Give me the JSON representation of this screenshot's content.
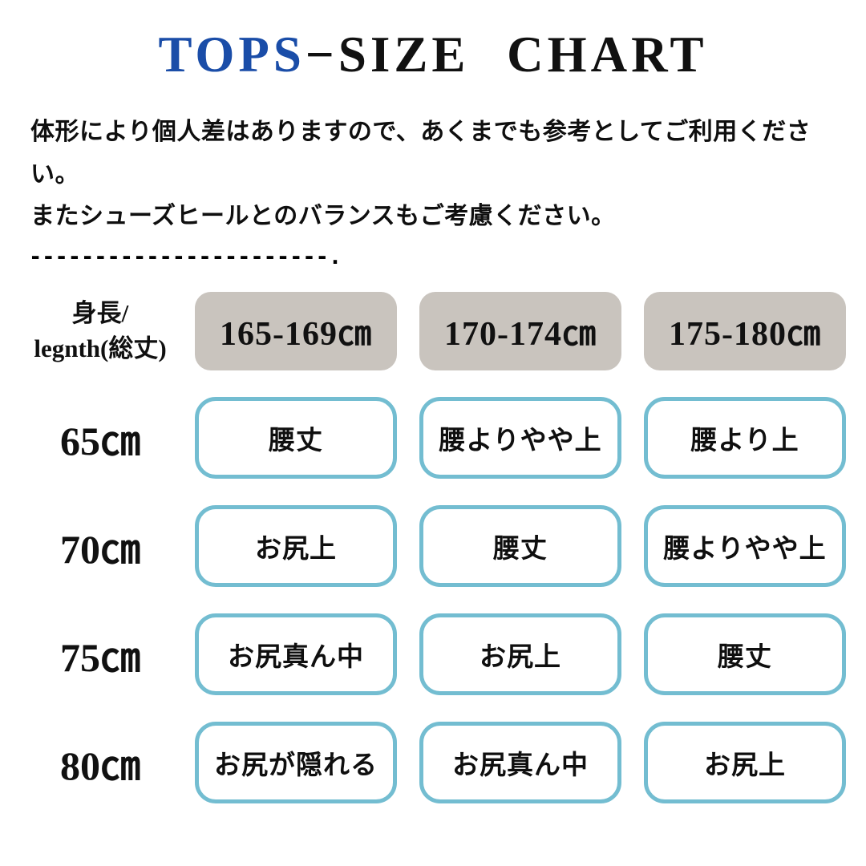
{
  "title": {
    "highlight": "TOPS",
    "rest": "−SIZE CHART"
  },
  "intro": "体形により個人差はありますので、あくまでも参考としてご利用ください。\nまたシューズヒールとのバランスもご考慮ください。",
  "divider": "-----------------------.",
  "colors": {
    "accent_blue": "#1a4da8",
    "header_box_bg": "#c9c4be",
    "cell_border_blue": "#73bdd1",
    "text": "#111111",
    "background": "#ffffff"
  },
  "table": {
    "corner_label": "身長/\nlegnth(総丈)",
    "columns": [
      "165-169㎝",
      "170-174㎝",
      "175-180㎝"
    ],
    "rows": [
      {
        "label": "65㎝",
        "cells": [
          "腰丈",
          "腰よりやや上",
          "腰より上"
        ]
      },
      {
        "label": "70㎝",
        "cells": [
          "お尻上",
          "腰丈",
          "腰よりやや上"
        ]
      },
      {
        "label": "75㎝",
        "cells": [
          "お尻真ん中",
          "お尻上",
          "腰丈"
        ]
      },
      {
        "label": "80㎝",
        "cells": [
          "お尻が隠れる",
          "お尻真ん中",
          "お尻上"
        ]
      }
    ]
  },
  "chart_data": {
    "type": "table",
    "title": "TOPS−SIZE CHART",
    "columns": [
      "身長/legnth(総丈)",
      "165-169㎝",
      "170-174㎝",
      "175-180㎝"
    ],
    "rows": [
      [
        "65㎝",
        "腰丈",
        "腰よりやや上",
        "腰より上"
      ],
      [
        "70㎝",
        "お尻上",
        "腰丈",
        "腰よりやや上"
      ],
      [
        "75㎝",
        "お尻真ん中",
        "お尻上",
        "腰丈"
      ],
      [
        "80㎝",
        "お尻が隠れる",
        "お尻真ん中",
        "お尻上"
      ]
    ],
    "notes": "体形により個人差はありますので、あくまでも参考としてご利用ください。またシューズヒールとのバランスもご考慮ください。"
  }
}
